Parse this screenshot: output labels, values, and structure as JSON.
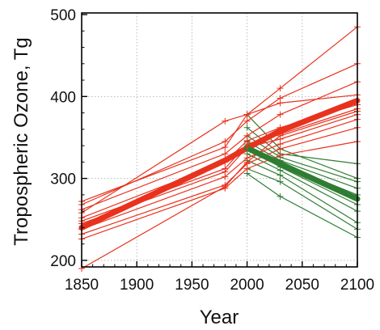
{
  "chart_data": {
    "type": "line",
    "title": "",
    "xlabel": "Year",
    "ylabel": "Tropospheric Ozone, Tg",
    "xlim": [
      1850,
      2100
    ],
    "ylim": [
      192,
      502
    ],
    "x_ticks": [
      1850,
      1900,
      1950,
      2000,
      2050,
      2100
    ],
    "y_ticks": [
      200,
      300,
      400,
      500
    ],
    "grid": true,
    "legend": "none",
    "colors": {
      "high": "#e8321e",
      "low": "#2f7d32",
      "grid": "#b8b8b8",
      "axis": "#000000"
    },
    "series": [
      {
        "group": "high",
        "bold": true,
        "x": [
          1850,
          1980,
          2000,
          2030,
          2100
        ],
        "y": [
          240,
          322,
          337,
          358,
          395
        ]
      },
      {
        "group": "low",
        "bold": true,
        "x": [
          2000,
          2030,
          2100
        ],
        "y": [
          337,
          318,
          275
        ]
      },
      {
        "group": "high",
        "x": [
          1850,
          1980,
          2000,
          2030,
          2100
        ],
        "y": [
          272,
          338,
          378,
          410,
          485
        ]
      },
      {
        "group": "high",
        "x": [
          1850,
          1980,
          2000,
          2030,
          2100
        ],
        "y": [
          268,
          345,
          370,
          398,
          440
        ]
      },
      {
        "group": "high",
        "x": [
          1850,
          1980,
          2000,
          2030,
          2100
        ],
        "y": [
          262,
          330,
          352,
          378,
          418
        ]
      },
      {
        "group": "high",
        "x": [
          1850,
          1980,
          2000,
          2030,
          2100
        ],
        "y": [
          258,
          370,
          378,
          392,
          402
        ]
      },
      {
        "group": "high",
        "x": [
          1850,
          1980,
          2000,
          2030,
          2100
        ],
        "y": [
          252,
          320,
          346,
          362,
          390
        ]
      },
      {
        "group": "high",
        "x": [
          1850,
          1980,
          2000,
          2030,
          2100
        ],
        "y": [
          248,
          312,
          342,
          354,
          385
        ]
      },
      {
        "group": "high",
        "x": [
          1850,
          1980,
          2000,
          2030,
          2100
        ],
        "y": [
          245,
          308,
          338,
          348,
          378
        ]
      },
      {
        "group": "high",
        "x": [
          1850,
          1980,
          2000,
          2030,
          2100
        ],
        "y": [
          238,
          302,
          325,
          342,
          372
        ]
      },
      {
        "group": "high",
        "x": [
          1850,
          1980,
          2000,
          2030,
          2100
        ],
        "y": [
          232,
          292,
          318,
          336,
          362
        ]
      },
      {
        "group": "high",
        "x": [
          1850,
          1980,
          2000,
          2030,
          2100
        ],
        "y": [
          226,
          288,
          312,
          328,
          345
        ]
      },
      {
        "group": "high",
        "x": [
          1850,
          1980,
          2000,
          2030,
          2100
        ],
        "y": [
          190,
          290,
          320,
          352,
          382
        ]
      },
      {
        "group": "low",
        "x": [
          2000,
          2030,
          2100
        ],
        "y": [
          378,
          336,
          300
        ]
      },
      {
        "group": "low",
        "x": [
          2000,
          2030,
          2100
        ],
        "y": [
          362,
          330,
          318
        ]
      },
      {
        "group": "low",
        "x": [
          2000,
          2030,
          2100
        ],
        "y": [
          352,
          326,
          296
        ]
      },
      {
        "group": "low",
        "x": [
          2000,
          2030,
          2100
        ],
        "y": [
          345,
          322,
          288
        ]
      },
      {
        "group": "low",
        "x": [
          2000,
          2030,
          2100
        ],
        "y": [
          340,
          318,
          280
        ]
      },
      {
        "group": "low",
        "x": [
          2000,
          2030,
          2100
        ],
        "y": [
          336,
          314,
          268
        ]
      },
      {
        "group": "low",
        "x": [
          2000,
          2030,
          2100
        ],
        "y": [
          330,
          310,
          260
        ]
      },
      {
        "group": "low",
        "x": [
          2000,
          2030,
          2100
        ],
        "y": [
          322,
          304,
          246
        ]
      },
      {
        "group": "low",
        "x": [
          2000,
          2030,
          2100
        ],
        "y": [
          312,
          296,
          238
        ]
      },
      {
        "group": "low",
        "x": [
          2000,
          2030,
          2100
        ],
        "y": [
          306,
          278,
          228
        ]
      }
    ]
  }
}
